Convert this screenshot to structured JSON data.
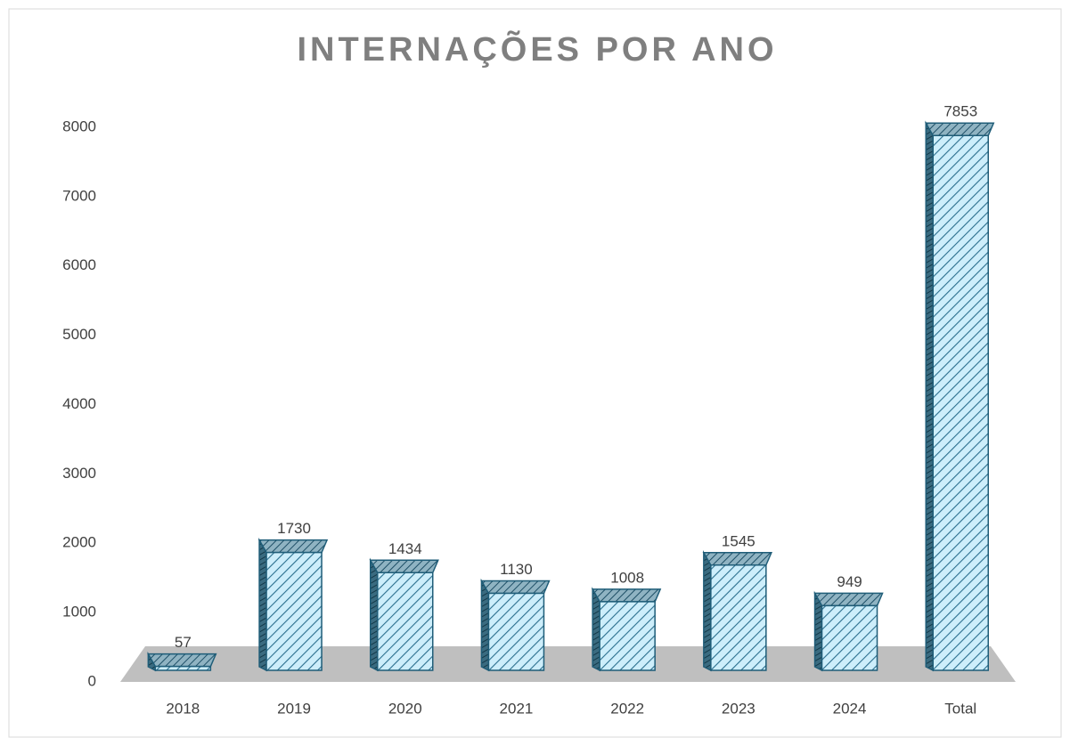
{
  "chart_data": {
    "type": "bar3d",
    "title": "INTERNAÇÕES POR ANO",
    "categories": [
      "2018",
      "2019",
      "2020",
      "2021",
      "2022",
      "2023",
      "2024",
      "Total"
    ],
    "values": [
      57,
      1730,
      1434,
      1130,
      1008,
      1545,
      949,
      7853
    ],
    "color": "#cdeefb",
    "ylim": [
      0,
      8000
    ],
    "yticks": [
      0,
      1000,
      2000,
      3000,
      4000,
      5000,
      6000,
      7000,
      8000
    ],
    "grid": false
  }
}
